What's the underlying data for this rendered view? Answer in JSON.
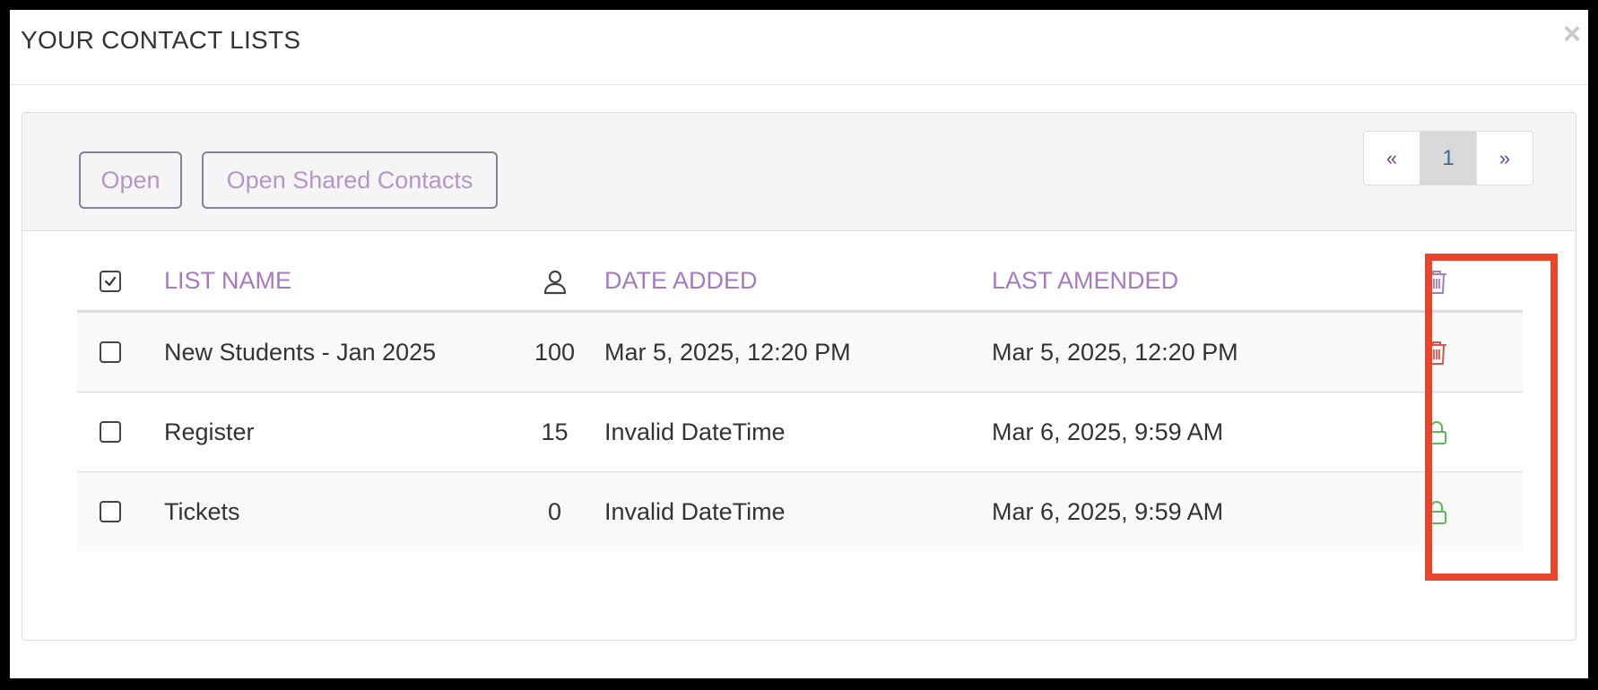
{
  "modal": {
    "title": "YOUR CONTACT LISTS",
    "close_label": "×"
  },
  "toolbar": {
    "open_label": "Open",
    "open_shared_label": "Open Shared Contacts"
  },
  "pagination": {
    "prev_label": "«",
    "current_page": "1",
    "next_label": "»"
  },
  "table": {
    "headers": {
      "list_name": "LIST NAME",
      "date_added": "DATE ADDED",
      "last_amended": "LAST AMENDED"
    },
    "rows": [
      {
        "name": "New Students - Jan 2025",
        "count": "100",
        "date_added": "Mar 5, 2025, 12:20 PM",
        "last_amended": "Mar 5, 2025, 12:20 PM",
        "action_icon": "trash-icon",
        "checked": false
      },
      {
        "name": "Register",
        "count": "15",
        "date_added": "Invalid DateTime",
        "last_amended": "Mar 6, 2025, 9:59 AM",
        "action_icon": "lock-icon",
        "checked": false
      },
      {
        "name": "Tickets",
        "count": "0",
        "date_added": "Invalid DateTime",
        "last_amended": "Mar 6, 2025, 9:59 AM",
        "action_icon": "lock-icon",
        "checked": false
      }
    ]
  },
  "colors": {
    "accent_purple": "#a779bd",
    "delete_red": "#d9534f",
    "lock_green": "#5cb85c",
    "highlight_red": "#e8452c"
  }
}
